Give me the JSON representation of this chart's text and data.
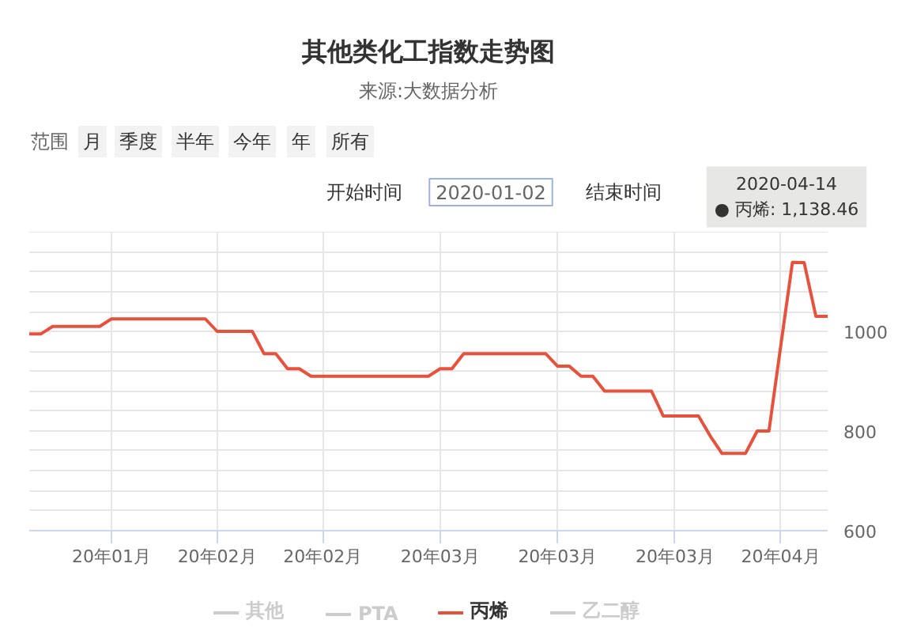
{
  "chart_data": {
    "type": "line",
    "title": "其他类化工指数走势图",
    "subtitle": "来源:大数据分析",
    "annotations": [
      "范围",
      "月",
      "季度",
      "半年",
      "今年",
      "年",
      "所有",
      "开始时间",
      "2020-01-02",
      "结束时间",
      "2020-04-14\n● 丙烯: 1,138.46"
    ],
    "categories": [
      null,
      null,
      null,
      null,
      null,
      null,
      null,
      "20年01月",
      null,
      null,
      null,
      null,
      null,
      null,
      null,
      null,
      "20年02月",
      null,
      null,
      null,
      null,
      null,
      null,
      null,
      null,
      "20年02月",
      null,
      null,
      null,
      null,
      null,
      null,
      null,
      null,
      null,
      "20年03月",
      null,
      null,
      null,
      null,
      null,
      null,
      null,
      null,
      null,
      "20年03月",
      null,
      null,
      null,
      null,
      null,
      null,
      null,
      null,
      null,
      "20年03月",
      null,
      null,
      null,
      null,
      null,
      null,
      null,
      null,
      "20年04月",
      null,
      null,
      null,
      null
    ],
    "series": [
      {
        "name": "其他",
        "color": "#cccccc",
        "values": [
          null,
          null,
          null,
          null,
          null,
          null,
          null,
          null,
          null,
          null,
          null,
          null,
          null,
          null,
          null,
          null,
          null,
          null,
          null,
          null,
          null,
          null,
          null,
          null,
          null,
          null,
          null,
          null,
          null,
          null,
          null,
          null,
          null,
          null,
          null,
          null,
          null,
          null,
          null,
          null,
          null,
          null,
          null,
          null,
          null,
          null,
          null,
          null,
          null,
          null,
          null,
          null,
          null,
          null,
          null,
          null,
          null,
          null,
          null,
          null,
          null,
          null,
          null,
          null,
          null,
          null,
          null,
          null,
          null
        ]
      },
      {
        "name": "PTA",
        "color": "#cccccc",
        "values": [
          null,
          null,
          null,
          null,
          null,
          null,
          null,
          null,
          null,
          null,
          null,
          null,
          null,
          null,
          null,
          null,
          null,
          null,
          null,
          null,
          null,
          null,
          null,
          null,
          null,
          null,
          null,
          null,
          null,
          null,
          null,
          null,
          null,
          null,
          null,
          null,
          null,
          null,
          null,
          null,
          null,
          null,
          null,
          null,
          null,
          null,
          null,
          null,
          null,
          null,
          null,
          null,
          null,
          null,
          null,
          null,
          null,
          null,
          null,
          null,
          null,
          null,
          null,
          null,
          null,
          null,
          null,
          null,
          null
        ]
      },
      {
        "name": "丙烯",
        "color": "#e5533f",
        "values": [
          995,
          995,
          1010,
          1010,
          1010,
          1010,
          1010,
          1025,
          1025,
          1025,
          1025,
          1025,
          1025,
          1025,
          1025,
          1025,
          1000,
          1000,
          1000,
          1000,
          955,
          955,
          925,
          925,
          910,
          910,
          910,
          910,
          910,
          910,
          910,
          910,
          910,
          910,
          910,
          925,
          925,
          955,
          955,
          955,
          955,
          955,
          955,
          955,
          955,
          930,
          930,
          910,
          910,
          880,
          880,
          880,
          880,
          880,
          830,
          830,
          830,
          830,
          790,
          755,
          755,
          755,
          800,
          800,
          970,
          1138.46,
          1138,
          1030,
          1030
        ]
      },
      {
        "name": "乙二醇",
        "color": "#cccccc",
        "values": [
          null,
          null,
          null,
          null,
          null,
          null,
          null,
          null,
          null,
          null,
          null,
          null,
          null,
          null,
          null,
          null,
          null,
          null,
          null,
          null,
          null,
          null,
          null,
          null,
          null,
          null,
          null,
          null,
          null,
          null,
          null,
          null,
          null,
          null,
          null,
          null,
          null,
          null,
          null,
          null,
          null,
          null,
          null,
          null,
          null,
          null,
          null,
          null,
          null,
          null,
          null,
          null,
          null,
          null,
          null,
          null,
          null,
          null,
          null,
          null,
          null,
          null,
          null,
          null,
          null,
          null,
          null,
          null,
          null
        ]
      }
    ],
    "ylim": [
      600,
      1200
    ],
    "yticks": [
      600,
      {
        "value": 640,
        "label": null
      },
      {
        "value": 680,
        "label": null
      },
      {
        "value": 720,
        "label": null
      },
      {
        "value": 760,
        "label": null
      },
      800,
      {
        "value": 840,
        "label": null
      },
      {
        "value": 880,
        "label": null
      },
      {
        "value": 920,
        "label": null
      },
      {
        "value": 960,
        "label": null
      },
      1000,
      {
        "value": 1040,
        "label": null
      },
      {
        "value": 1080,
        "label": null
      },
      {
        "value": 1120,
        "label": null
      },
      {
        "value": 1160,
        "label": null
      },
      {
        "value": 1200,
        "label": null
      }
    ],
    "grid": true,
    "legend": "bottom"
  }
}
